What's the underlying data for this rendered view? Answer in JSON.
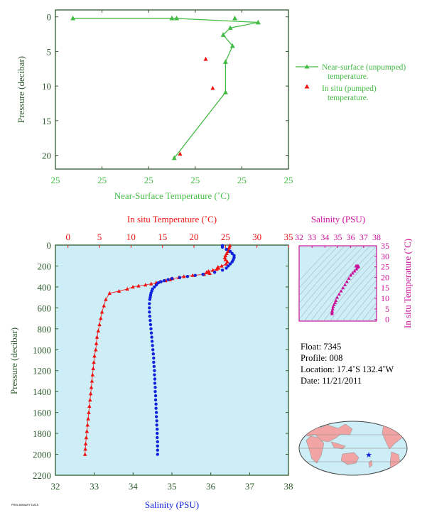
{
  "chart_data": [
    {
      "type": "line",
      "xlabel": "Near-Surface Temperature (˚C)",
      "ylabel": "Pressure (decibar)",
      "x_tick_labels": [
        "25",
        "25",
        "25",
        "25",
        "25",
        "25"
      ],
      "y_ticks": [
        0,
        5,
        10,
        15,
        20
      ],
      "ylim": [
        22,
        -1
      ],
      "legend_position": "right",
      "series": [
        {
          "name": "Near-surface (unpumped) temperature.",
          "color": "#44bb44",
          "points": [
            {
              "x": 0.075,
              "y": 0.2
            },
            {
              "x": 0.5,
              "y": 0.2
            },
            {
              "x": 0.87,
              "y": 0.8
            },
            {
              "x": 0.75,
              "y": 1.6
            },
            {
              "x": 0.72,
              "y": 2.6
            },
            {
              "x": 0.76,
              "y": 4.2
            },
            {
              "x": 0.73,
              "y": 6.5
            },
            {
              "x": 0.73,
              "y": 10.9
            },
            {
              "x": 0.51,
              "y": 20.4
            }
          ],
          "markers_only": [
            {
              "x": 0.52,
              "y": 0.2
            },
            {
              "x": 0.77,
              "y": 0.2
            }
          ]
        },
        {
          "name": "In situ (pumped) temperature.",
          "color": "#ee1111",
          "points": [
            {
              "x": 0.645,
              "y": 6.1
            },
            {
              "x": 0.675,
              "y": 10.3
            },
            {
              "x": 0.535,
              "y": 19.8
            }
          ]
        }
      ]
    },
    {
      "type": "scatter",
      "xlabel_bottom": "Salinity (PSU)",
      "xlabel_top": "In situ Temperature (˚C)",
      "ylabel": "Pressure (decibar)",
      "x_bottom_ticks": [
        32,
        33,
        34,
        35,
        36,
        37,
        38
      ],
      "x_top_ticks": [
        0,
        5,
        10,
        15,
        20,
        25,
        30,
        35
      ],
      "y_ticks": [
        0,
        200,
        400,
        600,
        800,
        1000,
        1200,
        1400,
        1600,
        1800,
        2000,
        2200
      ],
      "ylim": [
        2200,
        0
      ],
      "series": [
        {
          "name": "In situ Temperature",
          "color": "#ee1111",
          "points": [
            [
              25.7,
              5
            ],
            [
              25.6,
              20
            ],
            [
              25.5,
              40
            ],
            [
              25.4,
              60
            ],
            [
              25.2,
              80
            ],
            [
              25.0,
              100
            ],
            [
              24.9,
              120
            ],
            [
              25.0,
              140
            ],
            [
              25.3,
              160
            ],
            [
              25.1,
              180
            ],
            [
              24.4,
              200
            ],
            [
              23.8,
              210
            ],
            [
              23.9,
              220
            ],
            [
              23.6,
              230
            ],
            [
              23.0,
              240
            ],
            [
              22.3,
              250
            ],
            [
              22.0,
              260
            ],
            [
              22.5,
              270
            ],
            [
              21.6,
              280
            ],
            [
              19.8,
              290
            ],
            [
              18.4,
              300
            ],
            [
              17.6,
              310
            ],
            [
              16.6,
              320
            ],
            [
              16.2,
              330
            ],
            [
              15.5,
              340
            ],
            [
              14.6,
              350
            ],
            [
              14.0,
              360
            ],
            [
              13.2,
              370
            ],
            [
              12.3,
              380
            ],
            [
              11.2,
              390
            ],
            [
              10.3,
              400
            ],
            [
              9.4,
              420
            ],
            [
              8.1,
              440
            ],
            [
              6.6,
              460
            ],
            [
              6.0,
              520
            ],
            [
              5.7,
              580
            ],
            [
              5.4,
              640
            ],
            [
              5.2,
              700
            ],
            [
              5.0,
              760
            ],
            [
              4.8,
              820
            ],
            [
              4.6,
              880
            ],
            [
              4.5,
              940
            ],
            [
              4.4,
              1000
            ],
            [
              4.2,
              1060
            ],
            [
              4.1,
              1120
            ],
            [
              4.0,
              1180
            ],
            [
              3.9,
              1240
            ],
            [
              3.8,
              1300
            ],
            [
              3.7,
              1360
            ],
            [
              3.6,
              1420
            ],
            [
              3.5,
              1480
            ],
            [
              3.4,
              1540
            ],
            [
              3.3,
              1600
            ],
            [
              3.2,
              1660
            ],
            [
              3.1,
              1720
            ],
            [
              3.0,
              1780
            ],
            [
              2.9,
              1840
            ],
            [
              2.8,
              1900
            ],
            [
              2.75,
              1950
            ],
            [
              2.7,
              2000
            ]
          ]
        },
        {
          "name": "Salinity",
          "color": "#1122dd",
          "points": [
            [
              36.3,
              5
            ],
            [
              36.3,
              20
            ],
            [
              36.4,
              40
            ],
            [
              36.5,
              60
            ],
            [
              36.55,
              80
            ],
            [
              36.6,
              100
            ],
            [
              36.6,
              120
            ],
            [
              36.58,
              140
            ],
            [
              36.55,
              160
            ],
            [
              36.5,
              180
            ],
            [
              36.45,
              200
            ],
            [
              36.4,
              220
            ],
            [
              36.3,
              240
            ],
            [
              36.1,
              260
            ],
            [
              35.8,
              280
            ],
            [
              35.6,
              290
            ],
            [
              35.4,
              300
            ],
            [
              35.2,
              310
            ],
            [
              35.0,
              320
            ],
            [
              34.9,
              330
            ],
            [
              34.8,
              340
            ],
            [
              34.72,
              350
            ],
            [
              34.65,
              360
            ],
            [
              34.6,
              380
            ],
            [
              34.55,
              400
            ],
            [
              34.5,
              420
            ],
            [
              34.48,
              440
            ],
            [
              34.46,
              460
            ],
            [
              34.45,
              480
            ],
            [
              34.44,
              500
            ],
            [
              34.43,
              520
            ],
            [
              34.42,
              560
            ],
            [
              34.42,
              600
            ],
            [
              34.42,
              640
            ],
            [
              34.43,
              680
            ],
            [
              34.44,
              720
            ],
            [
              34.45,
              760
            ],
            [
              34.46,
              800
            ],
            [
              34.47,
              840
            ],
            [
              34.48,
              880
            ],
            [
              34.49,
              920
            ],
            [
              34.5,
              960
            ],
            [
              34.51,
              1000
            ],
            [
              34.52,
              1040
            ],
            [
              34.53,
              1080
            ],
            [
              34.53,
              1120
            ],
            [
              34.54,
              1160
            ],
            [
              34.55,
              1200
            ],
            [
              34.55,
              1240
            ],
            [
              34.56,
              1280
            ],
            [
              34.56,
              1320
            ],
            [
              34.57,
              1360
            ],
            [
              34.57,
              1400
            ],
            [
              34.58,
              1440
            ],
            [
              34.58,
              1480
            ],
            [
              34.59,
              1520
            ],
            [
              34.59,
              1560
            ],
            [
              34.6,
              1600
            ],
            [
              34.6,
              1640
            ],
            [
              34.61,
              1680
            ],
            [
              34.61,
              1720
            ],
            [
              34.62,
              1760
            ],
            [
              34.62,
              1800
            ],
            [
              34.62,
              1840
            ],
            [
              34.63,
              1880
            ],
            [
              34.63,
              1920
            ],
            [
              34.63,
              1960
            ],
            [
              34.63,
              2000
            ]
          ]
        }
      ]
    },
    {
      "type": "scatter",
      "xlabel": "Salinity (PSU)",
      "ylabel": "In situ Temperature (˚C)",
      "x_ticks": [
        32,
        33,
        34,
        35,
        36,
        37,
        38
      ],
      "y_ticks": [
        0,
        5,
        10,
        15,
        20,
        25,
        30,
        35
      ],
      "color": "#cc1199",
      "points": [
        [
          34.55,
          2.7
        ],
        [
          34.55,
          3.2
        ],
        [
          34.57,
          4.0
        ],
        [
          34.6,
          5.0
        ],
        [
          34.63,
          6.0
        ],
        [
          34.7,
          7.0
        ],
        [
          34.78,
          8.0
        ],
        [
          34.85,
          9.0
        ],
        [
          34.95,
          10.5
        ],
        [
          35.1,
          12.0
        ],
        [
          35.25,
          13.5
        ],
        [
          35.4,
          15.0
        ],
        [
          35.55,
          16.5
        ],
        [
          35.7,
          18.0
        ],
        [
          35.85,
          19.5
        ],
        [
          36.0,
          21.0
        ],
        [
          36.15,
          22.0
        ],
        [
          36.3,
          23.0
        ],
        [
          36.45,
          24.0
        ],
        [
          36.55,
          24.8
        ],
        [
          36.6,
          25.3
        ],
        [
          36.5,
          25.6
        ],
        [
          36.4,
          25.4
        ]
      ]
    }
  ],
  "info": {
    "float": "Float:  7345",
    "profile": "Profile:  008",
    "location": "Location:  17.4˚S  132.4˚W",
    "date": "Date:  11/21/2011"
  },
  "footer": "PRELIMINARY DATA",
  "colors": {
    "axis_green": "#2e5b2e",
    "light_green": "#44bb44",
    "red": "#ee1111",
    "blue": "#1122dd",
    "magenta": "#cc1199",
    "panel_bg": "#cdeef6",
    "land": "#f2a4a4"
  }
}
